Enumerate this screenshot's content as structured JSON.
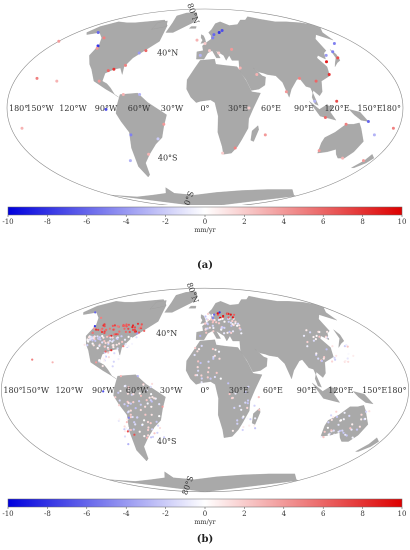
{
  "colors": {
    "land": "#a9a9a9",
    "outline": "#888888",
    "negative": "#0000dd",
    "positive": "#dd0000"
  },
  "panels": [
    {
      "label": "(a)",
      "colorbar_unit": "mm/yr",
      "colorbar_ticks": [
        "-10",
        "-8",
        "-6",
        "-4",
        "-2",
        "0",
        "2",
        "4",
        "6",
        "8",
        "10"
      ],
      "lon_labels": [
        "180°",
        "150°W",
        "120°W",
        "90°W",
        "60°W",
        "30°W",
        "0°",
        "30°E",
        "60°E",
        "90°E",
        "120°E",
        "150°E",
        "180°"
      ],
      "lat_labels": [
        "80°N",
        "40°N",
        "40°S",
        "80°S"
      ]
    },
    {
      "label": "(b)",
      "colorbar_unit": "mm/yr",
      "colorbar_ticks": [
        "-10",
        "-8",
        "-6",
        "-4",
        "-2",
        "0",
        "2",
        "4",
        "6",
        "8",
        "10"
      ],
      "lon_labels": [
        "180°",
        "150°W",
        "120°W",
        "90°W",
        "60°W",
        "30°W",
        "0°",
        "30°E",
        "60°E",
        "90°E",
        "120°E",
        "150°E",
        "180°"
      ],
      "lat_labels": [
        "80°N",
        "40°N",
        "40°S",
        "80°S"
      ]
    }
  ]
}
